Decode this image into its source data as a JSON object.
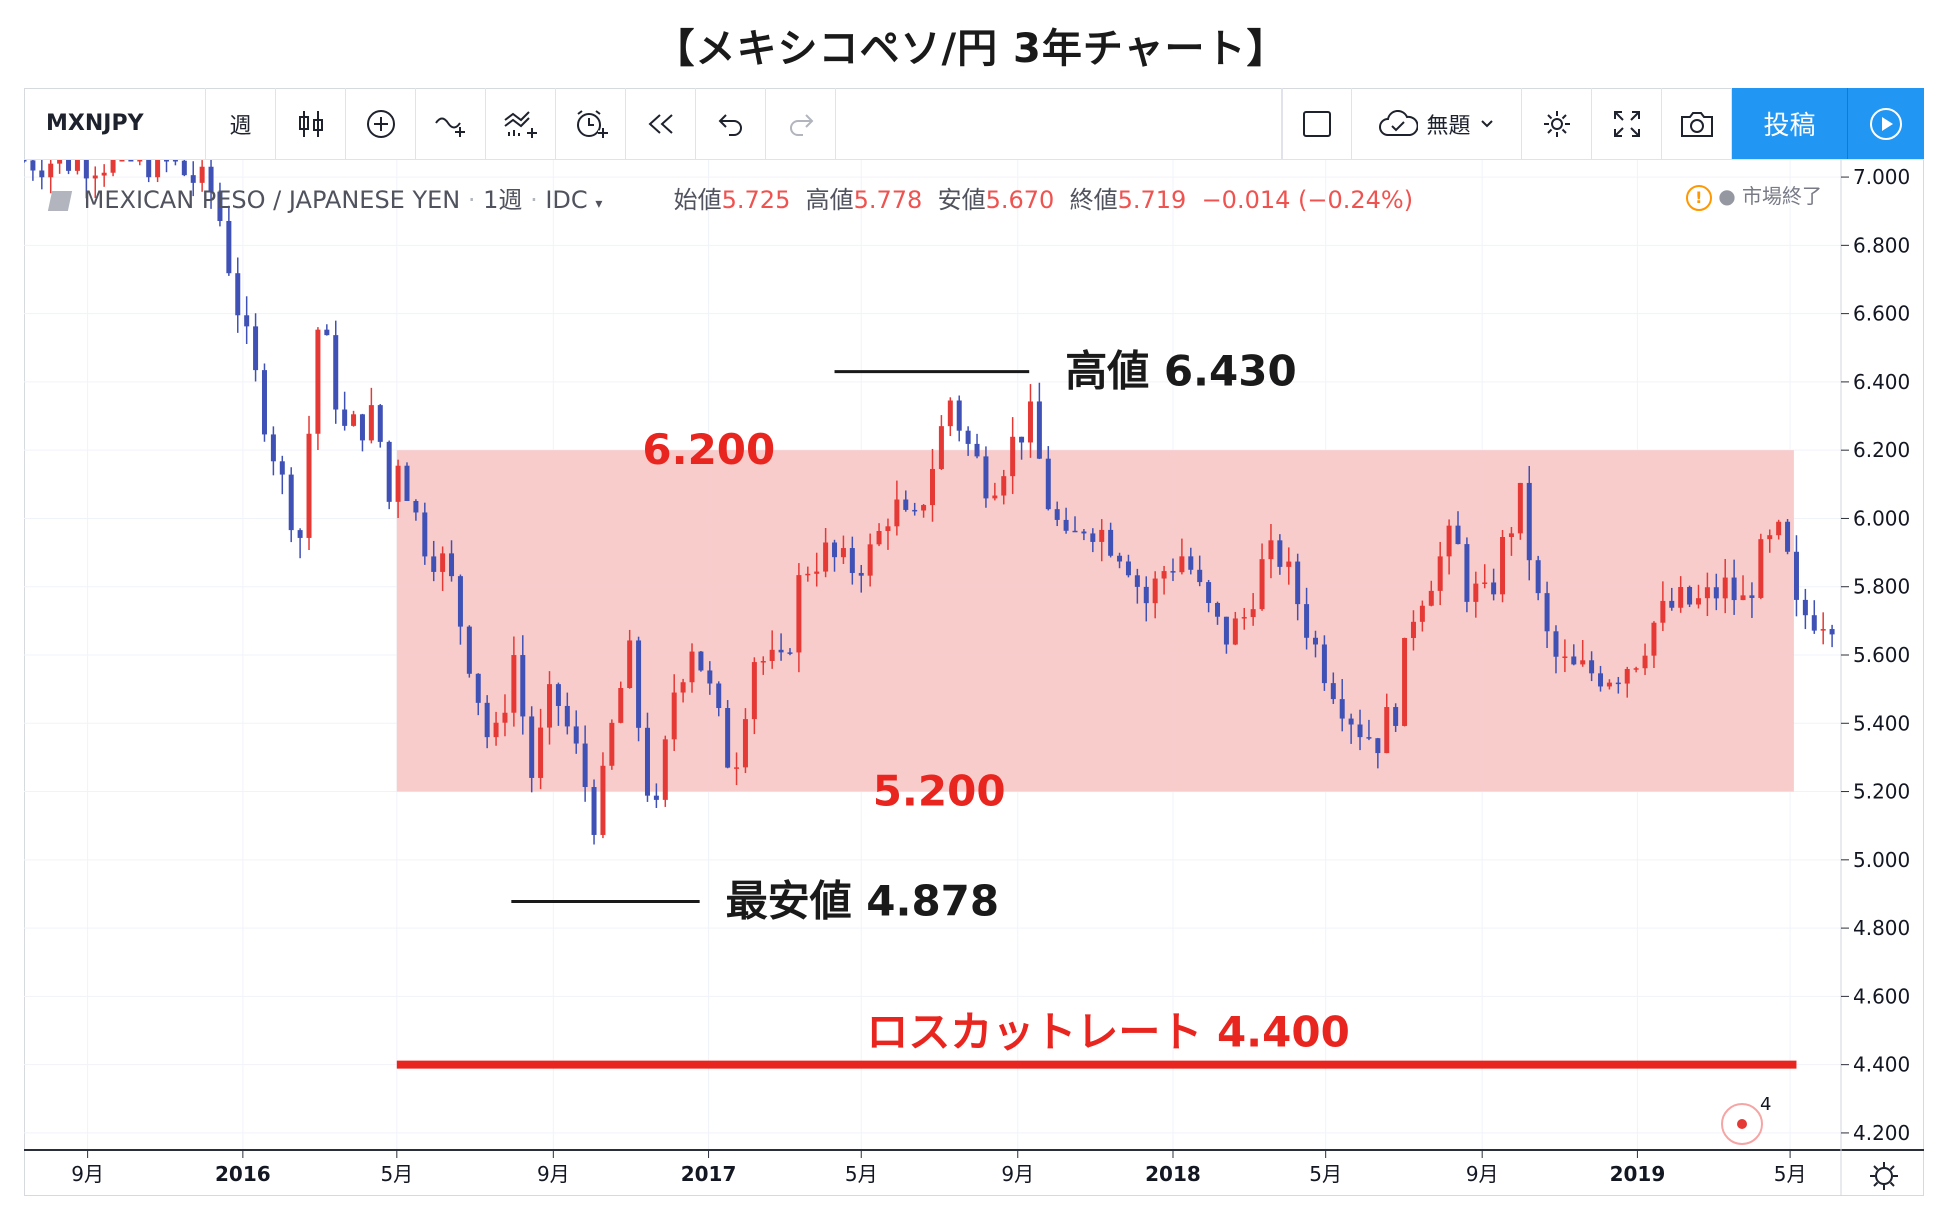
{
  "page_title": "【メキシコペソ/円 3年チャート】",
  "toolbar": {
    "symbol": "MXNJPY",
    "interval": "週",
    "layout_name": "無題",
    "publish_label": "投稿",
    "icons": [
      "bar-style-icon",
      "indicator-add-icon",
      "compare-icon",
      "indicators-icon",
      "alert-icon",
      "replay-icon",
      "undo-icon",
      "redo-icon",
      "layout-icon",
      "cloud-save-icon",
      "chevron-down-icon",
      "settings-icon",
      "fullscreen-icon",
      "camera-icon",
      "play-icon"
    ]
  },
  "legend": {
    "name": "MEXICAN PESO / JAPANESE YEN",
    "interval": "1週",
    "source": "IDC",
    "open_label": "始値",
    "open": "5.725",
    "high_label": "高値",
    "high": "5.778",
    "low_label": "安値",
    "low": "5.670",
    "close_label": "終値",
    "close": "5.719",
    "change": "−0.014 (−0.24%)",
    "market_status": "市場終了"
  },
  "colors": {
    "up": "#e53935",
    "down": "#3f51b5",
    "band": "#f8c7c7",
    "stop_line": "#e8261f",
    "accent": "#2196f3"
  },
  "annotations": {
    "high_label": "高値 6.430",
    "low_label": "最安値 4.878",
    "band_top_label": "6.200",
    "band_bottom_label": "5.200",
    "stop_label": "ロスカットレート 4.400"
  },
  "alerts_badge": "4",
  "chart_data": {
    "type": "candlestick",
    "title": "【メキシコペソ/円 3年チャート】",
    "y_axis": {
      "ylim": [
        4.15,
        7.05
      ],
      "ticks": [
        "7.000",
        "6.800",
        "6.600",
        "6.400",
        "6.200",
        "6.000",
        "5.800",
        "5.600",
        "5.400",
        "5.200",
        "5.000",
        "4.800",
        "4.600",
        "4.400",
        "4.200"
      ]
    },
    "x_axis": {
      "range": [
        "2015-07-13",
        "2019-06-10"
      ],
      "ticks": [
        {
          "label": "9月",
          "date": "2015-09-01"
        },
        {
          "label": "2016",
          "date": "2016-01-01"
        },
        {
          "label": "5月",
          "date": "2016-05-01"
        },
        {
          "label": "9月",
          "date": "2016-09-01"
        },
        {
          "label": "2017",
          "date": "2017-01-01"
        },
        {
          "label": "5月",
          "date": "2017-05-01"
        },
        {
          "label": "9月",
          "date": "2017-09-01"
        },
        {
          "label": "2018",
          "date": "2018-01-01"
        },
        {
          "label": "5月",
          "date": "2018-05-01"
        },
        {
          "label": "9月",
          "date": "2018-09-01"
        },
        {
          "label": "2019",
          "date": "2019-01-01"
        },
        {
          "label": "5月",
          "date": "2019-05-01"
        }
      ]
    },
    "band": {
      "from": "2016-05-01",
      "to": "2019-05-04",
      "low": 5.2,
      "high": 6.2
    },
    "high_marker": {
      "value": 6.43,
      "from": "2017-04-10",
      "to": "2017-09-10"
    },
    "low_marker": {
      "value": 4.878,
      "from": "2016-07-30",
      "to": "2016-12-25"
    },
    "stop_line": {
      "value": 4.4,
      "from": "2016-05-01",
      "to": "2019-05-06"
    },
    "legend": "none",
    "grid": true,
    "keypoints": [
      [
        "2015-07-15",
        7.05
      ],
      [
        "2015-09-20",
        7.05
      ],
      [
        "2015-11-01",
        7.05
      ],
      [
        "2015-12-10",
        6.95
      ],
      [
        "2016-01-01",
        6.55
      ],
      [
        "2016-02-01",
        6.1
      ],
      [
        "2016-02-15",
        5.95
      ],
      [
        "2016-03-01",
        6.6
      ],
      [
        "2016-03-20",
        6.25
      ],
      [
        "2016-04-15",
        6.3
      ],
      [
        "2016-04-25",
        6.05
      ],
      [
        "2016-05-01",
        6.2
      ],
      [
        "2016-05-20",
        5.95
      ],
      [
        "2016-06-10",
        5.85
      ],
      [
        "2016-06-30",
        5.55
      ],
      [
        "2016-07-15",
        5.3
      ],
      [
        "2016-08-01",
        5.6
      ],
      [
        "2016-08-15",
        5.25
      ],
      [
        "2016-09-01",
        5.5
      ],
      [
        "2016-09-20",
        5.3
      ],
      [
        "2016-10-05",
        5.1
      ],
      [
        "2016-10-20",
        5.45
      ],
      [
        "2016-11-01",
        5.6
      ],
      [
        "2016-11-10",
        5.3
      ],
      [
        "2016-11-20",
        5.1
      ],
      [
        "2016-12-05",
        5.5
      ],
      [
        "2016-12-20",
        5.65
      ],
      [
        "2017-01-05",
        5.45
      ],
      [
        "2017-01-20",
        5.25
      ],
      [
        "2017-02-05",
        5.6
      ],
      [
        "2017-03-01",
        5.55
      ],
      [
        "2017-03-15",
        5.85
      ],
      [
        "2017-04-01",
        5.9
      ],
      [
        "2017-04-20",
        5.85
      ],
      [
        "2017-05-10",
        5.9
      ],
      [
        "2017-05-25",
        6.05
      ],
      [
        "2017-06-10",
        5.95
      ],
      [
        "2017-06-25",
        6.15
      ],
      [
        "2017-07-10",
        6.35
      ],
      [
        "2017-07-25",
        6.2
      ],
      [
        "2017-08-10",
        6.1
      ],
      [
        "2017-08-25",
        6.2
      ],
      [
        "2017-09-10",
        6.3
      ],
      [
        "2017-09-25",
        6.05
      ],
      [
        "2017-10-10",
        5.9
      ],
      [
        "2017-10-25",
        6.0
      ],
      [
        "2017-11-10",
        5.95
      ],
      [
        "2017-11-25",
        5.9
      ],
      [
        "2017-12-10",
        5.75
      ],
      [
        "2017-12-25",
        5.85
      ],
      [
        "2018-01-10",
        5.9
      ],
      [
        "2018-01-25",
        5.75
      ],
      [
        "2018-02-10",
        5.65
      ],
      [
        "2018-02-25",
        5.7
      ],
      [
        "2018-03-10",
        5.85
      ],
      [
        "2018-03-25",
        5.9
      ],
      [
        "2018-04-10",
        5.75
      ],
      [
        "2018-04-25",
        5.6
      ],
      [
        "2018-05-10",
        5.5
      ],
      [
        "2018-05-25",
        5.4
      ],
      [
        "2018-06-10",
        5.35
      ],
      [
        "2018-06-25",
        5.45
      ],
      [
        "2018-07-10",
        5.75
      ],
      [
        "2018-07-25",
        5.85
      ],
      [
        "2018-08-10",
        5.95
      ],
      [
        "2018-08-20",
        5.8
      ],
      [
        "2018-09-05",
        5.75
      ],
      [
        "2018-09-20",
        5.95
      ],
      [
        "2018-10-01",
        6.05
      ],
      [
        "2018-10-15",
        5.75
      ],
      [
        "2018-10-25",
        5.6
      ],
      [
        "2018-11-10",
        5.55
      ],
      [
        "2018-11-25",
        5.55
      ],
      [
        "2018-12-15",
        5.55
      ],
      [
        "2018-12-31",
        5.6
      ],
      [
        "2019-01-15",
        5.7
      ],
      [
        "2019-02-01",
        5.75
      ],
      [
        "2019-02-20",
        5.75
      ],
      [
        "2019-03-10",
        5.8
      ],
      [
        "2019-03-25",
        5.75
      ],
      [
        "2019-04-10",
        5.9
      ],
      [
        "2019-04-25",
        5.95
      ],
      [
        "2019-05-06",
        5.72
      ]
    ]
  }
}
